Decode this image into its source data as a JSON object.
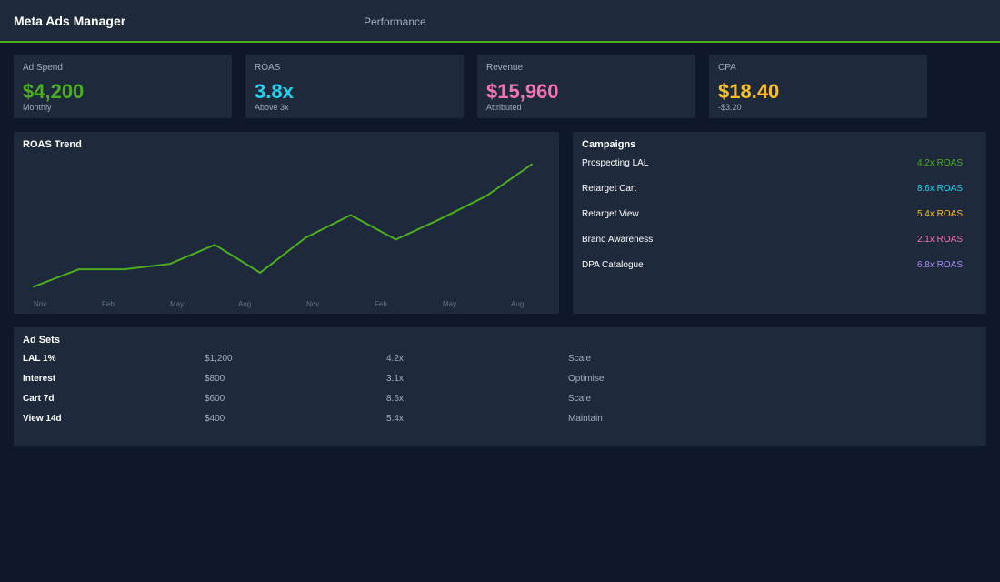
{
  "app": {
    "title": "Meta Ads Manager",
    "nav_tab": "Performance"
  },
  "colors": {
    "background": "#0f172a",
    "panel": "#1e293b",
    "accent": "#4cae1f",
    "green": "#4cae1f",
    "cyan": "#22d3ee",
    "pink": "#f472b6",
    "yellow": "#fbbf24",
    "purple": "#a78bfa",
    "muted": "#a3afc0"
  },
  "kpis": [
    {
      "label": "Ad Spend",
      "value": "$4,200",
      "sub": "Monthly",
      "color": "#4cae1f"
    },
    {
      "label": "ROAS",
      "value": "3.8x",
      "sub": "Above 3x",
      "color": "#22d3ee"
    },
    {
      "label": "Revenue",
      "value": "$15,960",
      "sub": "Attributed",
      "color": "#f472b6"
    },
    {
      "label": "CPA",
      "value": "$18.40",
      "sub": "-$3.20",
      "color": "#fbbf24"
    }
  ],
  "trend": {
    "title": "ROAS Trend"
  },
  "chart_data": {
    "type": "line",
    "title": "ROAS Trend",
    "xlabel": "",
    "ylabel": "",
    "x_tick_labels": [
      "Nov",
      "Feb",
      "May",
      "Aug",
      "Nov",
      "Feb",
      "May",
      "Aug"
    ],
    "series": [
      {
        "color": "#4cae1f",
        "values": [
          2.0,
          2.5,
          2.5,
          2.65,
          3.2,
          2.4,
          3.4,
          4.05,
          3.35,
          3.95,
          4.6,
          5.5
        ]
      }
    ],
    "ylim": [
      1.8,
      5.7
    ],
    "grid": false,
    "legend": "none"
  },
  "campaigns": {
    "title": "Campaigns",
    "items": [
      {
        "name": "Prospecting LAL",
        "roas": "4.2x ROAS",
        "color": "#4cae1f"
      },
      {
        "name": "Retarget Cart",
        "roas": "8.6x ROAS",
        "color": "#22d3ee"
      },
      {
        "name": "Retarget View",
        "roas": "5.4x ROAS",
        "color": "#fbbf24"
      },
      {
        "name": "Brand Awareness",
        "roas": "2.1x ROAS",
        "color": "#f472b6"
      },
      {
        "name": "DPA Catalogue",
        "roas": "6.8x ROAS",
        "color": "#a78bfa"
      }
    ]
  },
  "adsets": {
    "title": "Ad Sets",
    "rows": [
      {
        "name": "LAL 1%",
        "spend": "$1,200",
        "roas": "4.2x",
        "action": "Scale"
      },
      {
        "name": "Interest",
        "spend": "$800",
        "roas": "3.1x",
        "action": "Optimise"
      },
      {
        "name": "Cart 7d",
        "spend": "$600",
        "roas": "8.6x",
        "action": "Scale"
      },
      {
        "name": "View 14d",
        "spend": "$400",
        "roas": "5.4x",
        "action": "Maintain"
      }
    ]
  }
}
